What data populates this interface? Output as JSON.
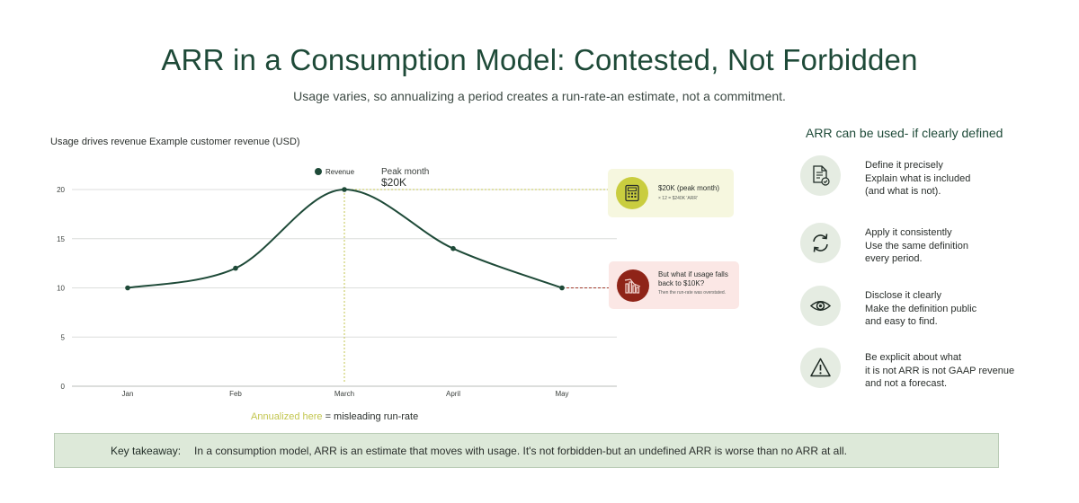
{
  "header": {
    "title": "ARR in a Consumption Model: Contested, Not Forbidden",
    "subtitle": "Usage varies, so annualizing a period creates a run-rate-an estimate, not a commitment."
  },
  "chart_caption": "Usage drives revenue Example customer revenue (USD)",
  "chart_data": {
    "type": "line",
    "title": "",
    "xlabel": "",
    "ylabel": "",
    "categories": [
      "Jan",
      "Feb",
      "March",
      "April",
      "May"
    ],
    "series": [
      {
        "name": "Revenue",
        "values": [
          10,
          12,
          20,
          14,
          10
        ]
      }
    ],
    "ylim": [
      0,
      20
    ],
    "yticks": [
      "0",
      "5",
      "10",
      "15",
      "20"
    ],
    "grid": "horizontal",
    "legend_position": "top",
    "line_color": "#1e4a38",
    "peak_annotation": {
      "label": "Peak month",
      "value": "$20K",
      "category": "March"
    }
  },
  "annotations": {
    "peak_card": {
      "main": "$20K (peak month)",
      "sub": "× 12 = $240K 'ARR'",
      "icon": "calculator-icon",
      "color": "#c9cd3f"
    },
    "drop_card": {
      "main": "But what if usage falls back to $10K?",
      "sub": "Then the run-rate was overstated.",
      "icon": "declining-bars-icon",
      "color": "#8f2418"
    },
    "annualized_highlight": "Annualized here",
    "annualized_rest": " = misleading run-rate"
  },
  "principles": {
    "heading": "ARR can be used- if clearly defined",
    "items": [
      {
        "icon": "document-check-icon",
        "lines": [
          "Define it precisely",
          "Explain what is included",
          "(and what is not)."
        ]
      },
      {
        "icon": "refresh-icon",
        "lines": [
          "Apply it consistently",
          "Use the same definition",
          "every period."
        ]
      },
      {
        "icon": "eye-icon",
        "lines": [
          "Disclose it clearly",
          "Make the definition public",
          "and easy to find."
        ]
      },
      {
        "icon": "warning-icon",
        "lines": [
          "Be explicit about what",
          "it is not ARR is not GAAP revenue",
          "and not a forecast."
        ]
      }
    ]
  },
  "takeaway": {
    "label": "Key takeaway:",
    "text": "In a consumption model, ARR is an estimate that moves with usage. It's not forbidden-but an undefined ARR is worse than no ARR at all."
  },
  "colors": {
    "accent": "#1e4a38",
    "highlight": "#c9cd3f",
    "alert": "#8f2418",
    "panel": "#dde9d9"
  }
}
